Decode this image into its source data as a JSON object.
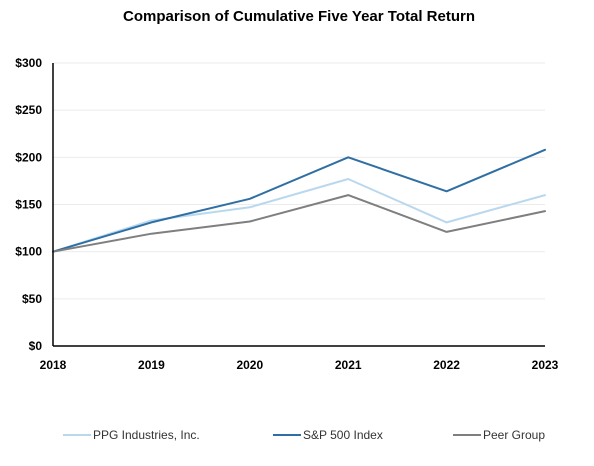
{
  "chart_data": {
    "type": "line",
    "title": "Comparison of Cumulative Five Year Total Return",
    "xlabel": "",
    "ylabel": "",
    "categories": [
      "2018",
      "2019",
      "2020",
      "2021",
      "2022",
      "2023"
    ],
    "ylim": [
      0,
      300
    ],
    "yticks": [
      0,
      50,
      100,
      150,
      200,
      250,
      300
    ],
    "ytick_labels": [
      "$0",
      "$50",
      "$100",
      "$150",
      "$200",
      "$250",
      "$300"
    ],
    "grid": true,
    "legend_position": "bottom",
    "series": [
      {
        "name": "PPG Industries, Inc.",
        "color": "#b9d8ee",
        "values": [
          100,
          133,
          147,
          177,
          131,
          160
        ]
      },
      {
        "name": "S&P 500 Index",
        "color": "#2f6fa3",
        "values": [
          100,
          131,
          156,
          200,
          164,
          208
        ]
      },
      {
        "name": "Peer Group",
        "color": "#7f7f7f",
        "values": [
          100,
          119,
          132,
          160,
          121,
          143
        ]
      }
    ]
  }
}
